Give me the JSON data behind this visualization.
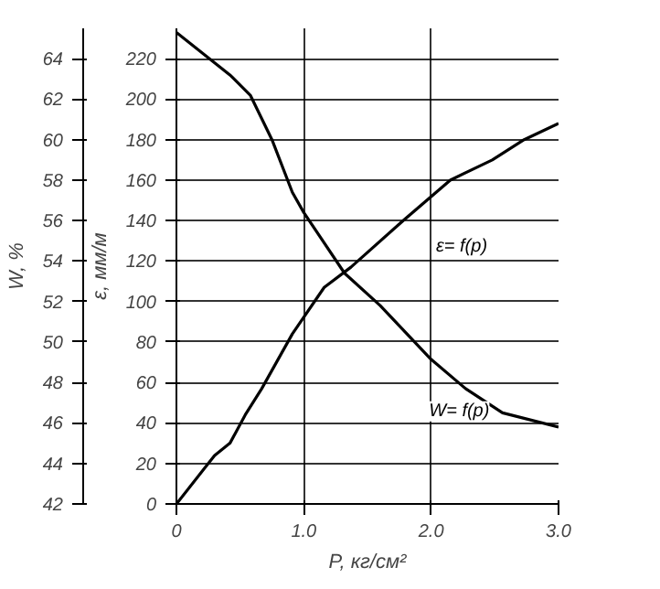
{
  "chart_data": {
    "type": "line",
    "xlabel": "P, кг/см²",
    "ylabel": "ε, мм/м",
    "y2label": "W, %",
    "xlim": [
      0,
      3.0
    ],
    "ylim": [
      0,
      235
    ],
    "y2lim": [
      42,
      65.5
    ],
    "xticks": [
      0,
      {
        "value": 1,
        "label": "1.0"
      },
      {
        "value": 2,
        "label": "2.0"
      },
      {
        "value": 3,
        "label": "3.0"
      }
    ],
    "yticks": [
      0,
      20,
      40,
      60,
      80,
      100,
      120,
      140,
      160,
      180,
      200,
      220
    ],
    "y2ticks": [
      42,
      44,
      46,
      48,
      50,
      52,
      54,
      56,
      58,
      60,
      62,
      64
    ],
    "grid": true,
    "marker": "none",
    "line_style": "solid",
    "series": [
      {
        "name": "ε= f(p)",
        "color": "#000000",
        "x": [
          0,
          0.3,
          0.42,
          0.54,
          0.67,
          0.91,
          1.16,
          1.37,
          1.78,
          2.15,
          2.48,
          2.73,
          3.0
        ],
        "values": [
          0,
          24,
          30,
          44,
          57,
          84,
          107,
          117,
          140,
          160,
          170,
          180,
          188
        ]
      },
      {
        "name": "W= f(p)",
        "axis": "y2",
        "color": "#000000",
        "x": [
          0,
          0.42,
          0.58,
          0.75,
          0.91,
          1.0,
          1.32,
          1.6,
          1.99,
          2.27,
          2.56,
          3.0
        ],
        "values": [
          65.3,
          63.2,
          62.2,
          60.0,
          57.4,
          56.4,
          53.4,
          51.8,
          49.2,
          47.7,
          46.5,
          45.8
        ]
      }
    ]
  }
}
